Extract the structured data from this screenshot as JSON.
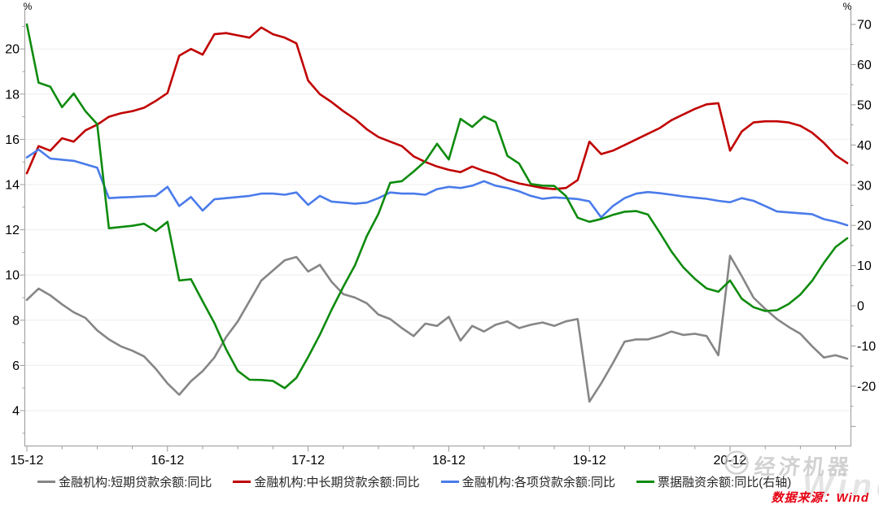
{
  "chart_data": {
    "type": "line",
    "title": "",
    "x_axis": {
      "start": "2015-12",
      "end": "2021-10",
      "frequency": "monthly",
      "points": 71,
      "tick_labels": [
        "15-12",
        "16-12",
        "17-12",
        "18-12",
        "19-12",
        "20-12"
      ],
      "minor_tick_every_months": 3
    },
    "left_axis": {
      "unit": "%",
      "tick_labels": [
        "4",
        "6",
        "8",
        "10",
        "12",
        "14",
        "16",
        "18",
        "20"
      ],
      "range": [
        2.4,
        21.8
      ],
      "grid": "faint horizontal gridlines at labeled ticks"
    },
    "right_axis": {
      "unit": "%",
      "tick_labels": [
        "-20",
        "-10",
        "0",
        "10",
        "20",
        "30",
        "40",
        "50",
        "60",
        "70"
      ],
      "range": [
        -34.8,
        74.1
      ]
    },
    "legend_position": "bottom",
    "series": [
      {
        "name": "金融机构:短期贷款余额:同比",
        "key": "short-term-loans",
        "axis": "left",
        "color": "#868686",
        "values": [
          8.9,
          9.4,
          9.1,
          8.7,
          8.35,
          8.1,
          7.55,
          7.15,
          6.85,
          6.65,
          6.4,
          5.85,
          5.2,
          4.7,
          5.3,
          5.75,
          6.35,
          7.25,
          7.95,
          8.85,
          9.75,
          10.2,
          10.65,
          10.8,
          10.15,
          10.45,
          9.7,
          9.15,
          9.0,
          8.75,
          8.25,
          8.05,
          7.65,
          7.3,
          7.85,
          7.75,
          8.15,
          7.1,
          7.75,
          7.5,
          7.8,
          7.95,
          7.65,
          7.8,
          7.9,
          7.75,
          7.95,
          8.05,
          4.4,
          5.2,
          6.1,
          7.05,
          7.15,
          7.15,
          7.3,
          7.5,
          7.35,
          7.4,
          7.3,
          6.45,
          10.85,
          9.95,
          9.0,
          8.5,
          8.05,
          7.7,
          7.4,
          6.85,
          6.35,
          6.45,
          6.3
        ]
      },
      {
        "name": "金融机构:中长期贷款余额:同比",
        "key": "medium-long-term-loans",
        "axis": "left",
        "color": "#c00000",
        "values": [
          14.5,
          15.7,
          15.5,
          16.05,
          15.9,
          16.4,
          16.65,
          17.0,
          17.15,
          17.25,
          17.4,
          17.7,
          18.05,
          19.7,
          20.0,
          19.75,
          20.65,
          20.7,
          20.6,
          20.5,
          20.95,
          20.65,
          20.5,
          20.25,
          18.6,
          18.0,
          17.65,
          17.25,
          16.9,
          16.45,
          16.1,
          15.9,
          15.7,
          15.25,
          15.0,
          14.8,
          14.65,
          14.55,
          14.8,
          14.6,
          14.45,
          14.2,
          14.05,
          13.95,
          13.85,
          13.8,
          13.85,
          14.2,
          15.9,
          15.35,
          15.5,
          15.75,
          16.0,
          16.25,
          16.5,
          16.85,
          17.1,
          17.35,
          17.55,
          17.6,
          15.5,
          16.35,
          16.75,
          16.8,
          16.8,
          16.75,
          16.6,
          16.3,
          15.85,
          15.3,
          14.95
        ]
      },
      {
        "name": "金融机构:各项贷款余额:同比",
        "key": "total-loans",
        "axis": "left",
        "color": "#4a7bea",
        "values": [
          15.2,
          15.55,
          15.15,
          15.1,
          15.05,
          14.9,
          14.75,
          13.4,
          13.43,
          13.45,
          13.48,
          13.5,
          13.9,
          13.05,
          13.45,
          12.85,
          13.35,
          13.4,
          13.45,
          13.5,
          13.6,
          13.6,
          13.55,
          13.65,
          13.1,
          13.5,
          13.25,
          13.2,
          13.15,
          13.2,
          13.4,
          13.65,
          13.6,
          13.6,
          13.55,
          13.8,
          13.9,
          13.85,
          13.95,
          14.15,
          13.95,
          13.85,
          13.7,
          13.5,
          13.37,
          13.43,
          13.4,
          13.36,
          13.26,
          12.55,
          13.05,
          13.4,
          13.6,
          13.67,
          13.62,
          13.55,
          13.48,
          13.42,
          13.37,
          13.28,
          13.22,
          13.4,
          13.28,
          13.05,
          12.81,
          12.77,
          12.73,
          12.69,
          12.47,
          12.36,
          12.2
        ]
      },
      {
        "name": "票据融资余额:同比(右轴)",
        "key": "bill-financing",
        "axis": "right",
        "color": "#0e8b0e",
        "values": [
          70.0,
          55.5,
          54.5,
          49.4,
          52.8,
          48.4,
          45.2,
          19.3,
          19.6,
          19.9,
          20.4,
          18.6,
          20.9,
          6.3,
          6.6,
          1.1,
          -4.3,
          -10.8,
          -16.2,
          -18.4,
          -18.45,
          -18.7,
          -20.5,
          -17.9,
          -12.75,
          -7.2,
          -1.0,
          4.75,
          10.1,
          17.3,
          22.9,
          30.6,
          31.0,
          33.4,
          36.0,
          40.3,
          36.4,
          46.5,
          44.5,
          47.1,
          45.7,
          37.3,
          35.4,
          30.3,
          29.9,
          29.8,
          27.3,
          21.9,
          20.9,
          21.6,
          22.6,
          23.4,
          23.55,
          22.7,
          18.2,
          13.5,
          9.6,
          6.7,
          4.3,
          3.5,
          6.3,
          1.75,
          -0.35,
          -1.3,
          -1.1,
          0.45,
          2.8,
          6.2,
          10.65,
          14.6,
          16.8
        ]
      }
    ]
  },
  "source_note": {
    "text": "数据来源：Wind"
  },
  "watermark": {
    "logo": "smiley-face-icon",
    "brand_text": "经济机器",
    "ghost_text": "Wind"
  }
}
